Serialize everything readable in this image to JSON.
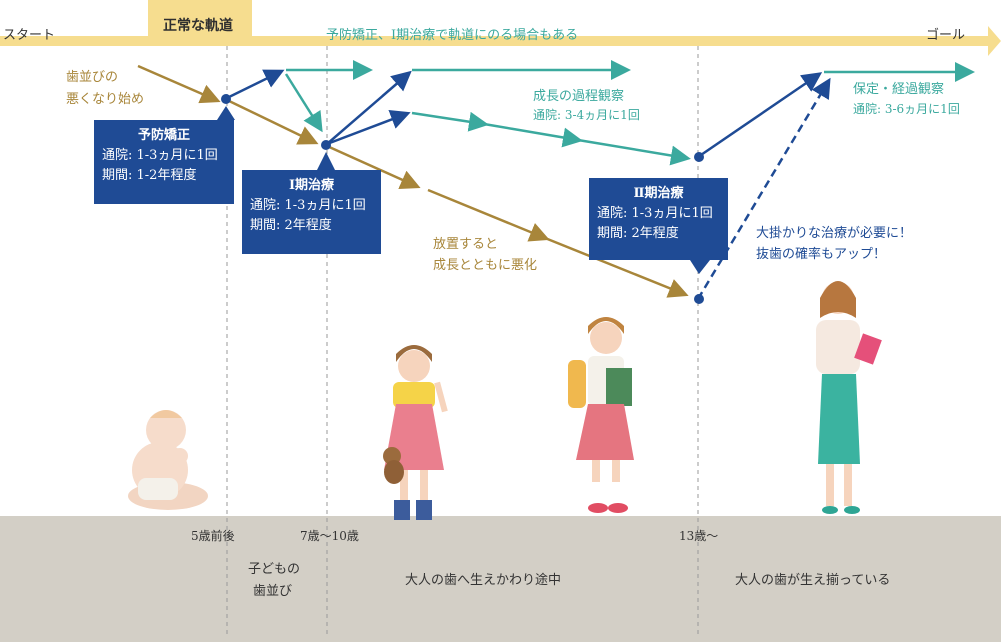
{
  "timeline": {
    "start_label": "スタート",
    "goal_label": "ゴール",
    "normal_track_label": "正常な軌道",
    "track_note": "予防矯正、Ⅰ期治療で軌道にのる場合もある"
  },
  "annotations": {
    "malocclusion_start_line1": "歯並びの",
    "malocclusion_start_line2": "悪くなり始め",
    "growth_observation_title": "成長の過程観察",
    "growth_observation_visit": "通院: 3-4ヵ月に1回",
    "retention_title": "保定・経過観察",
    "retention_visit": "通院: 3-6ヵ月に1回",
    "neglect_line1": "放置すると",
    "neglect_line2": "成長とともに悪化",
    "major_line1": "大掛かりな治療が必要に！",
    "major_line2": "抜歯の確率もアップ！"
  },
  "boxes": {
    "preventive": {
      "title": "予防矯正",
      "visit": "通院: 1-3ヵ月に1回",
      "period": "期間: 1-2年程度"
    },
    "phase1": {
      "title": "Ⅰ期治療",
      "visit": "通院: 1-3ヵ月に1回",
      "period": "期間: 2年程度"
    },
    "phase2": {
      "title": "Ⅱ期治療",
      "visit": "通院: 1-3ヵ月に1回",
      "period": "期間: 2年程度"
    }
  },
  "ages": {
    "age5": "5歳前後",
    "age7_10": "7歳〜10歳",
    "age13": "13歳〜"
  },
  "stages": {
    "child_line1": "子どもの",
    "child_line2": "歯並び",
    "mixed": "大人の歯へ生えかわり途中",
    "adult": "大人の歯が生え揃っている"
  },
  "colors": {
    "band_yellow": "#f6dd8f",
    "brown": "#a8863a",
    "teal": "#3ba99e",
    "navy": "#1f4b95",
    "ground": "#d3cfc6"
  }
}
